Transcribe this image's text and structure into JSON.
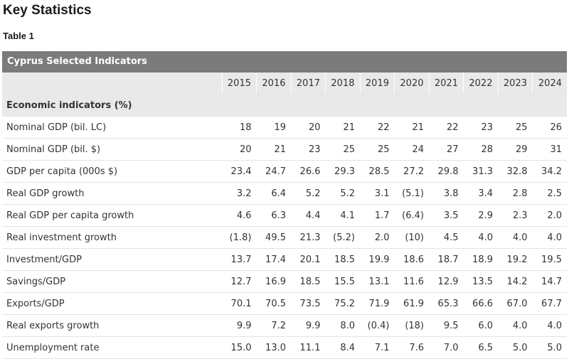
{
  "page": {
    "heading": "Key Statistics",
    "subheading": "Table 1"
  },
  "table": {
    "caption": "Cyprus Selected Indicators",
    "years": [
      "2015",
      "2016",
      "2017",
      "2018",
      "2019",
      "2020",
      "2021",
      "2022",
      "2023",
      "2024"
    ],
    "section_label": "Economic indicators (%)",
    "rows": [
      {
        "label": "Nominal GDP (bil. LC)",
        "values": [
          "18",
          "19",
          "20",
          "21",
          "22",
          "21",
          "22",
          "23",
          "25",
          "26"
        ]
      },
      {
        "label": "Nominal GDP (bil. $)",
        "values": [
          "20",
          "21",
          "23",
          "25",
          "25",
          "24",
          "27",
          "28",
          "29",
          "31"
        ]
      },
      {
        "label": "GDP per capita (000s $)",
        "values": [
          "23.4",
          "24.7",
          "26.6",
          "29.3",
          "28.5",
          "27.2",
          "29.8",
          "31.3",
          "32.8",
          "34.2"
        ]
      },
      {
        "label": "Real GDP growth",
        "values": [
          "3.2",
          "6.4",
          "5.2",
          "5.2",
          "3.1",
          "(5.1)",
          "3.8",
          "3.4",
          "2.8",
          "2.5"
        ]
      },
      {
        "label": "Real GDP per capita growth",
        "values": [
          "4.6",
          "6.3",
          "4.4",
          "4.1",
          "1.7",
          "(6.4)",
          "3.5",
          "2.9",
          "2.3",
          "2.0"
        ]
      },
      {
        "label": "Real investment growth",
        "values": [
          "(1.8)",
          "49.5",
          "21.3",
          "(5.2)",
          "2.0",
          "(10)",
          "4.5",
          "4.0",
          "4.0",
          "4.0"
        ]
      },
      {
        "label": "Investment/GDP",
        "values": [
          "13.7",
          "17.4",
          "20.1",
          "18.5",
          "19.9",
          "18.6",
          "18.7",
          "18.9",
          "19.2",
          "19.5"
        ]
      },
      {
        "label": "Savings/GDP",
        "values": [
          "12.7",
          "16.9",
          "18.5",
          "15.5",
          "13.1",
          "11.6",
          "12.9",
          "13.5",
          "14.2",
          "14.7"
        ]
      },
      {
        "label": "Exports/GDP",
        "values": [
          "70.1",
          "70.5",
          "73.5",
          "75.2",
          "71.9",
          "61.9",
          "65.3",
          "66.6",
          "67.0",
          "67.7"
        ]
      },
      {
        "label": "Real exports growth",
        "values": [
          "9.9",
          "7.2",
          "9.9",
          "8.0",
          "(0.4)",
          "(18)",
          "9.5",
          "6.0",
          "4.0",
          "4.0"
        ]
      },
      {
        "label": "Unemployment rate",
        "values": [
          "15.0",
          "13.0",
          "11.1",
          "8.4",
          "7.1",
          "7.6",
          "7.0",
          "6.5",
          "5.0",
          "5.0"
        ]
      }
    ]
  }
}
